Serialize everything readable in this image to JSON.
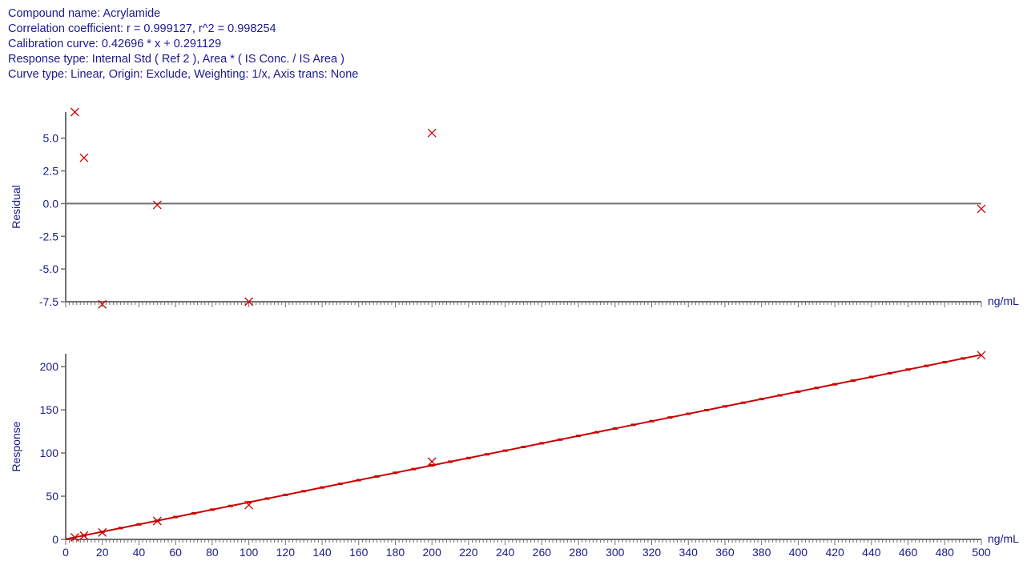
{
  "header": {
    "lines": [
      "Compound name: Acrylamide",
      "Correlation coefficient: r = 0.999127, r^2 = 0.998254",
      "Calibration curve: 0.42696 * x + 0.291129",
      "Response type: Internal Std ( Ref 2 ), Area * ( IS Conc. / IS Area )",
      "Curve type: Linear, Origin: Exclude, Weighting: 1/x, Axis trans: None"
    ]
  },
  "colors": {
    "text": "#1a1a8c",
    "axis": "#707070",
    "marker": "#cc0000",
    "fit_line": "#cc0000",
    "zero_line": "#707070"
  },
  "chart_data": [
    {
      "type": "scatter",
      "name": "residual-plot",
      "ylabel": "Residual",
      "xunit": "ng/mL",
      "xlim": [
        0,
        500
      ],
      "ylim": [
        -7.5,
        7
      ],
      "yticks": [
        5.0,
        2.5,
        0.0,
        -2.5,
        -5.0,
        -7.5
      ],
      "ytick_labels": [
        "5.0",
        "2.5",
        "0.0",
        "-2.5",
        "-5.0",
        "-7.5"
      ],
      "zero_line": true,
      "marker": "x",
      "points": [
        {
          "x": 5,
          "y": 7.0
        },
        {
          "x": 10,
          "y": 3.5
        },
        {
          "x": 20,
          "y": -7.7
        },
        {
          "x": 50,
          "y": -0.1
        },
        {
          "x": 100,
          "y": -7.5
        },
        {
          "x": 200,
          "y": 5.4
        },
        {
          "x": 500,
          "y": -0.4
        }
      ]
    },
    {
      "type": "scatter",
      "name": "calibration-plot",
      "ylabel": "Response",
      "xunit": "ng/mL",
      "xlim": [
        0,
        500
      ],
      "ylim": [
        0,
        215
      ],
      "yticks": [
        0,
        50,
        100,
        150,
        200
      ],
      "ytick_labels": [
        "0",
        "50",
        "100",
        "150",
        "200"
      ],
      "xticks": [
        0,
        20,
        40,
        60,
        80,
        100,
        120,
        140,
        160,
        180,
        200,
        220,
        240,
        260,
        280,
        300,
        320,
        340,
        360,
        380,
        400,
        420,
        440,
        460,
        480,
        500
      ],
      "xtick_labels": [
        "0",
        "20",
        "40",
        "60",
        "80",
        "100",
        "120",
        "140",
        "160",
        "180",
        "200",
        "220",
        "240",
        "260",
        "280",
        "300",
        "320",
        "340",
        "360",
        "380",
        "400",
        "420",
        "440",
        "460",
        "480",
        "500"
      ],
      "marker": "x",
      "fit": {
        "slope": 0.42696,
        "intercept": 0.291129,
        "x_range": [
          0,
          500
        ]
      },
      "points": [
        {
          "x": 5,
          "y": 2.3
        },
        {
          "x": 10,
          "y": 4.4
        },
        {
          "x": 20,
          "y": 8.0
        },
        {
          "x": 50,
          "y": 21.3
        },
        {
          "x": 100,
          "y": 39.8
        },
        {
          "x": 200,
          "y": 90.0
        },
        {
          "x": 500,
          "y": 213.2
        }
      ]
    }
  ]
}
